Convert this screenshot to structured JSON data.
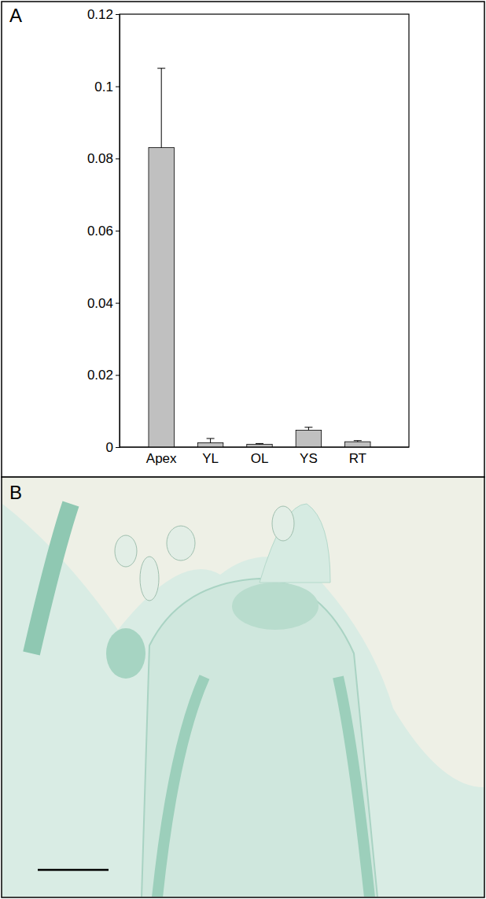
{
  "chart_data": {
    "type": "bar",
    "panel": "A",
    "categories": [
      "Apex",
      "YL",
      "OL",
      "YS",
      "RT"
    ],
    "values": [
      0.083,
      0.0012,
      0.0008,
      0.0047,
      0.0015
    ],
    "errors": [
      0.022,
      0.0012,
      0.0002,
      0.0008,
      0.0003
    ],
    "color": "#c0c0c0",
    "ylim": [
      0,
      0.12
    ],
    "yticks": [
      0,
      0.02,
      0.04,
      0.06,
      0.08,
      0.1,
      0.12
    ],
    "grid": false
  },
  "image_panel": {
    "panel": "B"
  }
}
